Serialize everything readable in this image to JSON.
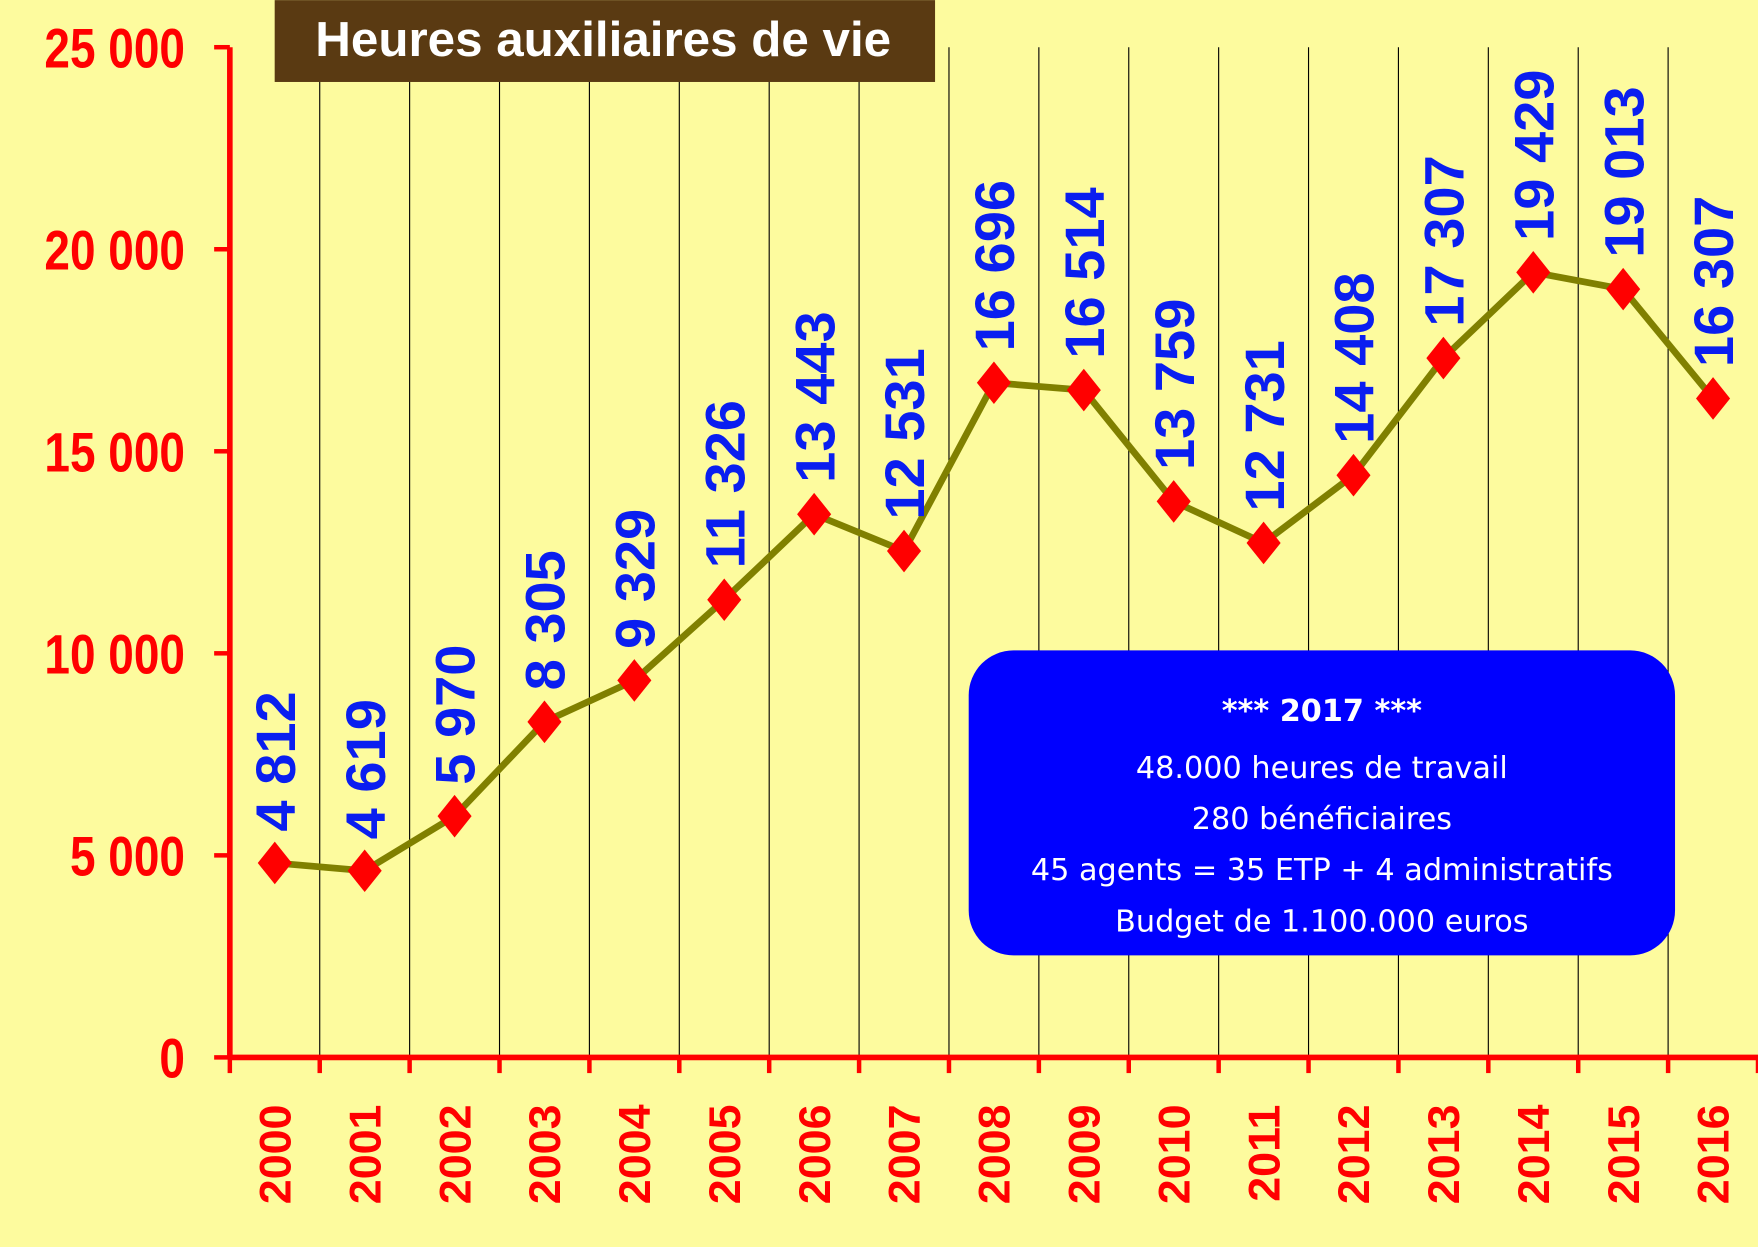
{
  "chart_data": {
    "type": "line",
    "title": "Heures auxiliaires de vie",
    "categories": [
      "2000",
      "2001",
      "2002",
      "2003",
      "2004",
      "2005",
      "2006",
      "2007",
      "2008",
      "2009",
      "2010",
      "2011",
      "2012",
      "2013",
      "2014",
      "2015",
      "2016"
    ],
    "series": [
      {
        "name": "Heures auxiliaires de vie",
        "color": "#808000",
        "marker_color": "#ff0000",
        "values": [
          4812,
          4619,
          5970,
          8305,
          9329,
          11326,
          13443,
          12531,
          16696,
          16514,
          13759,
          12731,
          14408,
          17307,
          19429,
          19013,
          16307
        ],
        "value_labels": [
          "4 812",
          "4 619",
          "5 970",
          "8 305",
          "9 329",
          "11 326",
          "13 443",
          "12 531",
          "16 696",
          "16 514",
          "13 759",
          "12 731",
          "14 408",
          "17 307",
          "19 429",
          "19 013",
          "16 307"
        ]
      }
    ],
    "ylim": [
      0,
      25000
    ],
    "yticks": [
      0,
      {
        "value": 5000,
        "label": "5 000"
      },
      {
        "value": 10000,
        "label": "10 000"
      },
      {
        "value": 15000,
        "label": "15 000"
      },
      {
        "value": 20000,
        "label": "20 000"
      },
      {
        "value": 25000,
        "label": "25 000"
      }
    ],
    "annotation": {
      "title": "*** 2017 ***",
      "lines": [
        "48.000 heures de travail",
        "280 bénéficiaires",
        "45 agents = 35 ETP + 4 administratifs",
        "Budget de 1.100.000 euros"
      ]
    }
  }
}
